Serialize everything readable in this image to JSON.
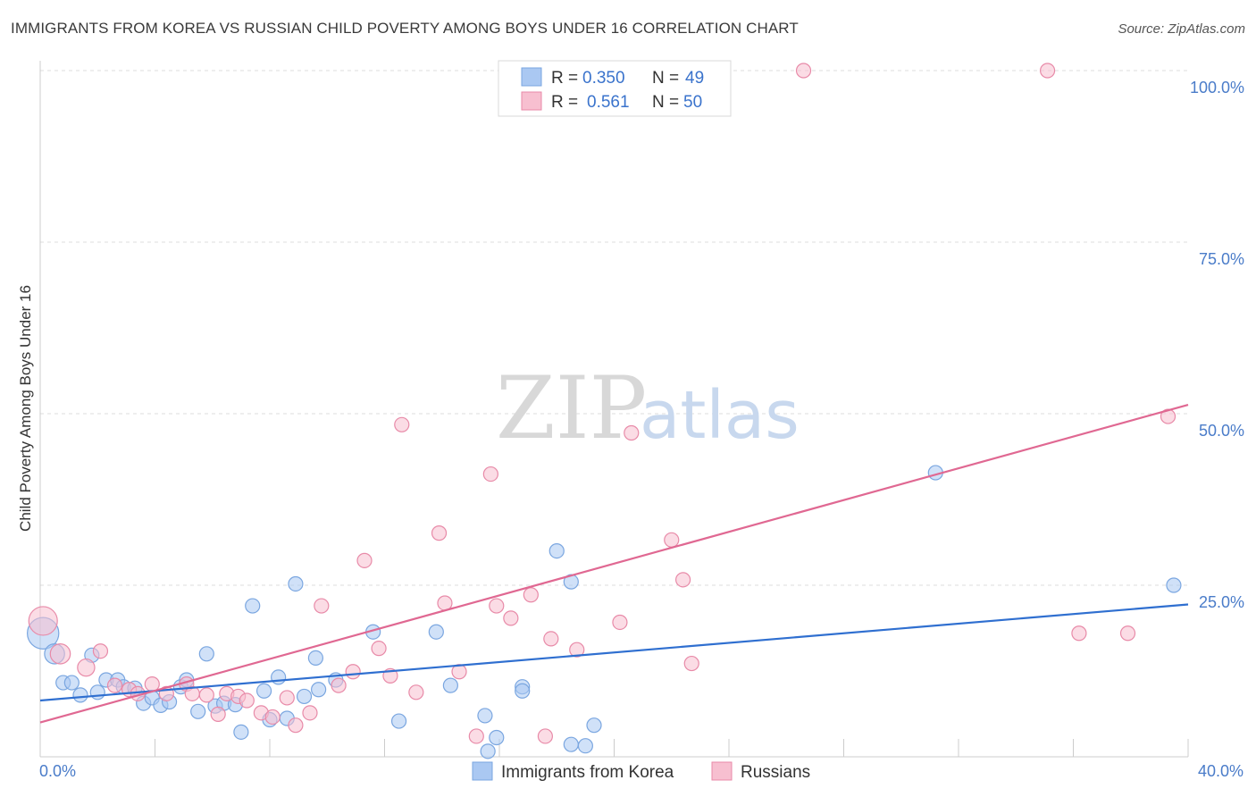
{
  "title": "IMMIGRANTS FROM KOREA VS RUSSIAN CHILD POVERTY AMONG BOYS UNDER 16 CORRELATION CHART",
  "source": "Source: ZipAtlas.com",
  "watermark": {
    "zip": "ZIP",
    "atlas": "atlas"
  },
  "legend": {
    "rows": [
      {
        "r_label": "R =",
        "r_value": "0.350",
        "n_label": "N =",
        "n_value": "49",
        "color": "#aac8f2",
        "stroke": "#7aa6e0"
      },
      {
        "r_label": "R =",
        "r_value": "0.561",
        "n_label": "N =",
        "n_value": "50",
        "color": "#f7bfd0",
        "stroke": "#e88aa8"
      }
    ]
  },
  "bottom_legend": [
    {
      "label": "Immigrants from Korea",
      "color": "#aac8f2",
      "stroke": "#7aa6e0"
    },
    {
      "label": "Russians",
      "color": "#f7bfd0",
      "stroke": "#e88aa8"
    }
  ],
  "chart_data": {
    "type": "scatter",
    "title": "IMMIGRANTS FROM KOREA VS RUSSIAN CHILD POVERTY AMONG BOYS UNDER 16 CORRELATION CHART",
    "xlabel": "",
    "ylabel": "Child Poverty Among Boys Under 16",
    "xlim": [
      0,
      40
    ],
    "ylim": [
      0,
      100
    ],
    "x_tick_labels": [
      {
        "value": 0,
        "label": "0.0%"
      },
      {
        "value": 40,
        "label": "40.0%"
      }
    ],
    "y_tick_labels": [
      {
        "value": 25,
        "label": "25.0%"
      },
      {
        "value": 50,
        "label": "50.0%"
      },
      {
        "value": 75,
        "label": "75.0%"
      },
      {
        "value": 100,
        "label": "100.0%"
      }
    ],
    "grid": true,
    "legend_position": "top-center",
    "series": [
      {
        "name": "Immigrants from Korea",
        "color": "#aac8f2",
        "stroke": "#7aa6e0",
        "line_color": "#2f6fd0",
        "trend": {
          "x0": 0,
          "y0": 8.2,
          "x1": 40,
          "y1": 22.2
        },
        "points": [
          {
            "x": 0.1,
            "y": 18.0,
            "s": 2.2
          },
          {
            "x": 0.5,
            "y": 15.0,
            "s": 1.4
          },
          {
            "x": 0.8,
            "y": 10.8,
            "s": 1
          },
          {
            "x": 1.1,
            "y": 10.8,
            "s": 1
          },
          {
            "x": 1.4,
            "y": 9.0,
            "s": 1
          },
          {
            "x": 1.8,
            "y": 14.8,
            "s": 1
          },
          {
            "x": 2.0,
            "y": 9.4,
            "s": 1
          },
          {
            "x": 2.3,
            "y": 11.2,
            "s": 1
          },
          {
            "x": 2.7,
            "y": 11.2,
            "s": 1
          },
          {
            "x": 2.9,
            "y": 10.2,
            "s": 1
          },
          {
            "x": 3.3,
            "y": 10.0,
            "s": 1
          },
          {
            "x": 3.6,
            "y": 7.8,
            "s": 1
          },
          {
            "x": 3.9,
            "y": 8.6,
            "s": 1
          },
          {
            "x": 4.2,
            "y": 7.5,
            "s": 1
          },
          {
            "x": 4.5,
            "y": 8.0,
            "s": 1
          },
          {
            "x": 4.9,
            "y": 10.2,
            "s": 1
          },
          {
            "x": 5.1,
            "y": 11.2,
            "s": 1
          },
          {
            "x": 5.5,
            "y": 6.6,
            "s": 1
          },
          {
            "x": 5.8,
            "y": 15.0,
            "s": 1
          },
          {
            "x": 6.1,
            "y": 7.4,
            "s": 1
          },
          {
            "x": 6.4,
            "y": 7.8,
            "s": 1
          },
          {
            "x": 6.8,
            "y": 7.6,
            "s": 1
          },
          {
            "x": 7.0,
            "y": 3.6,
            "s": 1
          },
          {
            "x": 7.4,
            "y": 22.0,
            "s": 1
          },
          {
            "x": 7.8,
            "y": 9.6,
            "s": 1
          },
          {
            "x": 8.0,
            "y": 5.4,
            "s": 1
          },
          {
            "x": 8.3,
            "y": 11.6,
            "s": 1
          },
          {
            "x": 8.6,
            "y": 5.6,
            "s": 1
          },
          {
            "x": 8.9,
            "y": 25.2,
            "s": 1
          },
          {
            "x": 9.2,
            "y": 8.8,
            "s": 1
          },
          {
            "x": 9.6,
            "y": 14.4,
            "s": 1
          },
          {
            "x": 9.7,
            "y": 9.8,
            "s": 1
          },
          {
            "x": 10.3,
            "y": 11.2,
            "s": 1
          },
          {
            "x": 11.6,
            "y": 18.2,
            "s": 1
          },
          {
            "x": 12.5,
            "y": 5.2,
            "s": 1
          },
          {
            "x": 13.8,
            "y": 18.2,
            "s": 1
          },
          {
            "x": 14.3,
            "y": 10.4,
            "s": 1
          },
          {
            "x": 15.5,
            "y": 6.0,
            "s": 1
          },
          {
            "x": 15.6,
            "y": 0.8,
            "s": 1
          },
          {
            "x": 15.9,
            "y": 2.8,
            "s": 1
          },
          {
            "x": 16.8,
            "y": 10.2,
            "s": 1
          },
          {
            "x": 16.8,
            "y": 9.6,
            "s": 1
          },
          {
            "x": 18.0,
            "y": 30.0,
            "s": 1
          },
          {
            "x": 18.5,
            "y": 1.8,
            "s": 1
          },
          {
            "x": 18.5,
            "y": 25.5,
            "s": 1
          },
          {
            "x": 19.0,
            "y": 1.6,
            "s": 1
          },
          {
            "x": 19.3,
            "y": 4.6,
            "s": 1
          },
          {
            "x": 31.2,
            "y": 41.4,
            "s": 1
          },
          {
            "x": 39.5,
            "y": 25.0,
            "s": 1
          }
        ]
      },
      {
        "name": "Russians",
        "color": "#f7bfd0",
        "stroke": "#e88aa8",
        "line_color": "#e06892",
        "trend": {
          "x0": 0,
          "y0": 5.0,
          "x1": 40,
          "y1": 51.3
        },
        "points": [
          {
            "x": 0.1,
            "y": 19.8,
            "s": 2.0
          },
          {
            "x": 0.7,
            "y": 15.0,
            "s": 1.4
          },
          {
            "x": 1.6,
            "y": 13.0,
            "s": 1.2
          },
          {
            "x": 2.1,
            "y": 15.4,
            "s": 1
          },
          {
            "x": 2.6,
            "y": 10.4,
            "s": 1
          },
          {
            "x": 3.1,
            "y": 9.8,
            "s": 1
          },
          {
            "x": 3.4,
            "y": 9.2,
            "s": 1
          },
          {
            "x": 3.9,
            "y": 10.6,
            "s": 1
          },
          {
            "x": 4.4,
            "y": 9.2,
            "s": 1
          },
          {
            "x": 5.1,
            "y": 10.6,
            "s": 1
          },
          {
            "x": 5.3,
            "y": 9.2,
            "s": 1
          },
          {
            "x": 5.8,
            "y": 9.0,
            "s": 1
          },
          {
            "x": 6.2,
            "y": 6.2,
            "s": 1
          },
          {
            "x": 6.5,
            "y": 9.2,
            "s": 1
          },
          {
            "x": 6.9,
            "y": 8.8,
            "s": 1
          },
          {
            "x": 7.2,
            "y": 8.2,
            "s": 1
          },
          {
            "x": 7.7,
            "y": 6.4,
            "s": 1
          },
          {
            "x": 8.1,
            "y": 5.8,
            "s": 1
          },
          {
            "x": 8.6,
            "y": 8.6,
            "s": 1
          },
          {
            "x": 8.9,
            "y": 4.6,
            "s": 1
          },
          {
            "x": 9.4,
            "y": 6.4,
            "s": 1
          },
          {
            "x": 9.8,
            "y": 22.0,
            "s": 1
          },
          {
            "x": 10.4,
            "y": 10.4,
            "s": 1
          },
          {
            "x": 10.9,
            "y": 12.4,
            "s": 1
          },
          {
            "x": 11.3,
            "y": 28.6,
            "s": 1
          },
          {
            "x": 11.8,
            "y": 15.8,
            "s": 1
          },
          {
            "x": 12.2,
            "y": 11.8,
            "s": 1
          },
          {
            "x": 12.6,
            "y": 48.4,
            "s": 1
          },
          {
            "x": 13.1,
            "y": 9.4,
            "s": 1
          },
          {
            "x": 13.9,
            "y": 32.6,
            "s": 1
          },
          {
            "x": 14.1,
            "y": 22.4,
            "s": 1
          },
          {
            "x": 14.6,
            "y": 12.4,
            "s": 1
          },
          {
            "x": 15.2,
            "y": 3.0,
            "s": 1
          },
          {
            "x": 15.7,
            "y": 41.2,
            "s": 1
          },
          {
            "x": 15.9,
            "y": 22.0,
            "s": 1
          },
          {
            "x": 16.4,
            "y": 20.2,
            "s": 1
          },
          {
            "x": 17.1,
            "y": 23.6,
            "s": 1
          },
          {
            "x": 17.6,
            "y": 3.0,
            "s": 1
          },
          {
            "x": 17.8,
            "y": 17.2,
            "s": 1
          },
          {
            "x": 18.7,
            "y": 15.6,
            "s": 1
          },
          {
            "x": 20.2,
            "y": 19.6,
            "s": 1
          },
          {
            "x": 20.6,
            "y": 47.2,
            "s": 1
          },
          {
            "x": 22.0,
            "y": 31.6,
            "s": 1
          },
          {
            "x": 22.4,
            "y": 25.8,
            "s": 1
          },
          {
            "x": 22.7,
            "y": 13.6,
            "s": 1
          },
          {
            "x": 26.6,
            "y": 100.0,
            "s": 1
          },
          {
            "x": 35.1,
            "y": 100.0,
            "s": 1
          },
          {
            "x": 36.2,
            "y": 18.0,
            "s": 1
          },
          {
            "x": 37.9,
            "y": 18.0,
            "s": 1
          },
          {
            "x": 39.3,
            "y": 49.6,
            "s": 1
          }
        ]
      }
    ]
  }
}
